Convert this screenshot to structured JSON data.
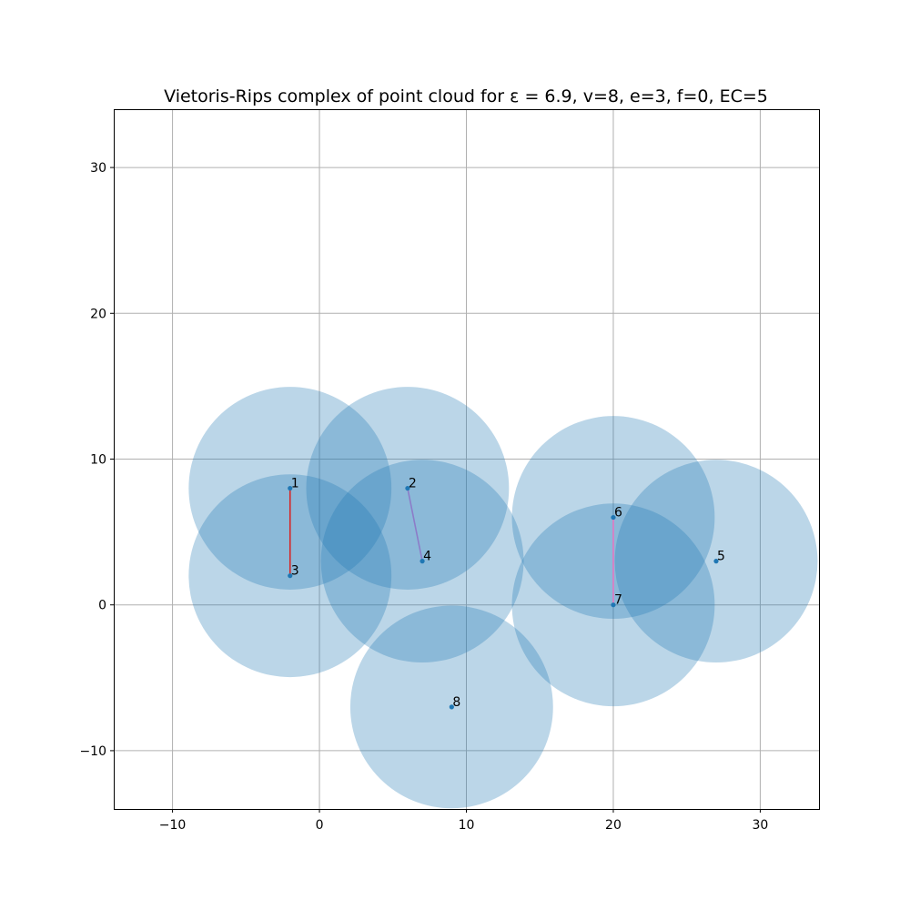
{
  "chart_data": {
    "type": "scatter",
    "title": "Vietoris-Rips complex of point cloud for ε = 6.9, v=8, e=3, f=0, EC=5",
    "epsilon": 6.9,
    "xlim": [
      -14,
      34
    ],
    "ylim": [
      -14,
      34
    ],
    "xticks": [
      -10,
      0,
      10,
      20,
      30
    ],
    "yticks": [
      -10,
      0,
      10,
      20,
      30
    ],
    "xtick_labels": [
      "−10",
      "0",
      "10",
      "20",
      "30"
    ],
    "ytick_labels": [
      "−10",
      "0",
      "10",
      "20",
      "30"
    ],
    "grid": true,
    "points": [
      {
        "label": "1",
        "x": -2,
        "y": 8
      },
      {
        "label": "2",
        "x": 6,
        "y": 8
      },
      {
        "label": "3",
        "x": -2,
        "y": 2
      },
      {
        "label": "4",
        "x": 7,
        "y": 3
      },
      {
        "label": "5",
        "x": 27,
        "y": 3
      },
      {
        "label": "6",
        "x": 20,
        "y": 6
      },
      {
        "label": "7",
        "x": 20,
        "y": 0
      },
      {
        "label": "8",
        "x": 9,
        "y": -7
      }
    ],
    "edges": [
      {
        "from": "1",
        "to": "3",
        "color": "#d62728"
      },
      {
        "from": "2",
        "to": "4",
        "color": "#8c7cc8"
      },
      {
        "from": "6",
        "to": "7",
        "color": "#e377c2"
      }
    ],
    "colors": {
      "ball": "#1f77b4",
      "point": "#1f77b4"
    }
  }
}
